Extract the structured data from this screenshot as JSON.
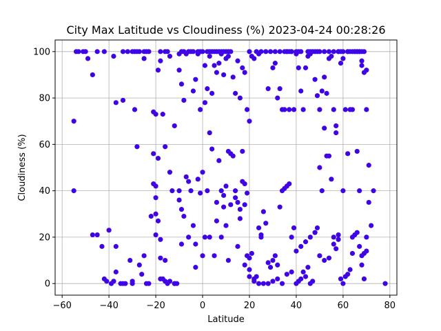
{
  "chart_data": {
    "type": "scatter",
    "title": "City Max Latitude vs Cloudiness (%) 2023-04-24 00:28:26",
    "xlabel": "Latitude",
    "ylabel": "Cloudiness (%)",
    "xlim": [
      -63,
      83
    ],
    "ylim": [
      -5,
      105
    ],
    "xticks": [
      -60,
      -40,
      -20,
      0,
      20,
      40,
      60,
      80
    ],
    "yticks": [
      0,
      20,
      40,
      60,
      80,
      100
    ],
    "grid": true,
    "marker_color": "#4b00d9",
    "marker_edge_color": "#2a10ff",
    "points": [
      [
        -54,
        100
      ],
      [
        -53,
        100
      ],
      [
        -51,
        100
      ],
      [
        -50,
        100
      ],
      [
        -49,
        97
      ],
      [
        -45,
        100
      ],
      [
        -38,
        98
      ],
      [
        -34,
        100
      ],
      [
        -32,
        100
      ],
      [
        -30,
        100
      ],
      [
        -29,
        100
      ],
      [
        -28,
        100
      ],
      [
        -27,
        100
      ],
      [
        -25,
        100
      ],
      [
        -24,
        100
      ],
      [
        -23,
        100
      ],
      [
        -18,
        100
      ],
      [
        -16,
        100
      ],
      [
        -15,
        100
      ],
      [
        -9,
        100
      ],
      [
        -8,
        100
      ],
      [
        -6,
        100
      ],
      [
        -4,
        100
      ],
      [
        -2,
        100
      ],
      [
        -1,
        100
      ],
      [
        0,
        100
      ],
      [
        2,
        100
      ],
      [
        3,
        100
      ],
      [
        4,
        100
      ],
      [
        5,
        100
      ],
      [
        6,
        100
      ],
      [
        7,
        100
      ],
      [
        8,
        100
      ],
      [
        9,
        100
      ],
      [
        10,
        100
      ],
      [
        11,
        100
      ],
      [
        12,
        100
      ],
      [
        20,
        100
      ],
      [
        23,
        100
      ],
      [
        25,
        100
      ],
      [
        27,
        100
      ],
      [
        29,
        100
      ],
      [
        31,
        100
      ],
      [
        33,
        100
      ],
      [
        35,
        100
      ],
      [
        36,
        100
      ],
      [
        37,
        100
      ],
      [
        38,
        100
      ],
      [
        40,
        100
      ],
      [
        41,
        100
      ],
      [
        42,
        100
      ],
      [
        45,
        100
      ],
      [
        46,
        100
      ],
      [
        48,
        100
      ],
      [
        49,
        100
      ],
      [
        50,
        100
      ],
      [
        52,
        100
      ],
      [
        54,
        100
      ],
      [
        56,
        100
      ],
      [
        58,
        100
      ],
      [
        59,
        100
      ],
      [
        60,
        100
      ],
      [
        62,
        100
      ],
      [
        63,
        100
      ],
      [
        64,
        100
      ],
      [
        65,
        100
      ],
      [
        66,
        100
      ],
      [
        67,
        100
      ],
      [
        68,
        100
      ],
      [
        69,
        100
      ],
      [
        -55,
        70
      ],
      [
        -55,
        40
      ],
      [
        -47,
        90
      ],
      [
        -42,
        100
      ],
      [
        -37,
        78
      ],
      [
        -34,
        79
      ],
      [
        -29,
        75
      ],
      [
        -28,
        59
      ],
      [
        -25,
        97
      ],
      [
        -21,
        74
      ],
      [
        -20,
        73
      ],
      [
        -19,
        92
      ],
      [
        -18,
        96
      ],
      [
        -17,
        73
      ],
      [
        -16,
        59
      ],
      [
        -14,
        98
      ],
      [
        -12,
        68
      ],
      [
        -10,
        99
      ],
      [
        -10,
        92
      ],
      [
        -9,
        86
      ],
      [
        -8,
        79
      ],
      [
        -7,
        99
      ],
      [
        -5,
        100
      ],
      [
        -4,
        83
      ],
      [
        -3,
        88
      ],
      [
        -2,
        99
      ],
      [
        -1,
        75
      ],
      [
        1,
        94
      ],
      [
        1,
        78
      ],
      [
        2,
        84
      ],
      [
        3,
        98
      ],
      [
        4,
        82
      ],
      [
        5,
        94
      ],
      [
        6,
        91
      ],
      [
        7,
        95
      ],
      [
        8,
        99
      ],
      [
        9,
        90
      ],
      [
        10,
        97
      ],
      [
        11,
        98
      ],
      [
        13,
        89
      ],
      [
        14,
        82
      ],
      [
        15,
        96
      ],
      [
        16,
        80
      ],
      [
        17,
        93
      ],
      [
        18,
        91
      ],
      [
        19,
        75
      ],
      [
        20,
        70
      ],
      [
        21,
        98
      ],
      [
        22,
        97
      ],
      [
        24,
        99
      ],
      [
        28,
        84
      ],
      [
        30,
        93
      ],
      [
        31,
        95
      ],
      [
        32,
        80
      ],
      [
        33,
        84
      ],
      [
        34,
        75
      ],
      [
        35,
        75
      ],
      [
        36,
        100
      ],
      [
        37,
        75
      ],
      [
        38,
        100
      ],
      [
        39,
        75
      ],
      [
        40,
        99
      ],
      [
        41,
        93
      ],
      [
        42,
        83
      ],
      [
        43,
        75
      ],
      [
        44,
        93
      ],
      [
        45,
        98
      ],
      [
        46,
        99
      ],
      [
        47,
        100
      ],
      [
        48,
        88
      ],
      [
        49,
        81
      ],
      [
        50,
        75
      ],
      [
        51,
        83
      ],
      [
        52,
        89
      ],
      [
        53,
        82
      ],
      [
        54,
        97
      ],
      [
        55,
        98
      ],
      [
        56,
        75
      ],
      [
        57,
        68
      ],
      [
        57,
        65
      ],
      [
        58,
        100
      ],
      [
        59,
        95
      ],
      [
        60,
        97
      ],
      [
        61,
        75
      ],
      [
        62,
        100
      ],
      [
        63,
        75
      ],
      [
        64,
        75
      ],
      [
        65,
        100
      ],
      [
        66,
        100
      ],
      [
        67,
        100
      ],
      [
        68,
        96
      ],
      [
        68,
        94
      ],
      [
        69,
        91
      ],
      [
        70,
        92
      ],
      [
        70,
        75
      ],
      [
        -47,
        21
      ],
      [
        -45,
        21
      ],
      [
        -43,
        16
      ],
      [
        -42,
        2
      ],
      [
        -41,
        1
      ],
      [
        -40,
        23
      ],
      [
        -39,
        0
      ],
      [
        -38,
        1
      ],
      [
        -37,
        5
      ],
      [
        -37,
        16
      ],
      [
        -35,
        0
      ],
      [
        -34,
        0
      ],
      [
        -33,
        0
      ],
      [
        -31,
        10
      ],
      [
        -30,
        1
      ],
      [
        -30,
        0
      ],
      [
        -27,
        8
      ],
      [
        -26,
        4
      ],
      [
        -25,
        12
      ],
      [
        -24,
        0
      ],
      [
        -23,
        0
      ],
      [
        -22,
        29
      ],
      [
        -21,
        56
      ],
      [
        -21,
        43
      ],
      [
        -20,
        42
      ],
      [
        -20,
        37
      ],
      [
        -20,
        30
      ],
      [
        -20,
        21
      ],
      [
        -19,
        54
      ],
      [
        -19,
        27
      ],
      [
        -18,
        19
      ],
      [
        -18,
        11
      ],
      [
        -17,
        2
      ],
      [
        -16,
        1
      ],
      [
        -15,
        0
      ],
      [
        -14,
        48
      ],
      [
        -13,
        40
      ],
      [
        -12,
        0
      ],
      [
        -11,
        0
      ],
      [
        -10,
        40
      ],
      [
        -10,
        36
      ],
      [
        -9,
        32
      ],
      [
        -8,
        29
      ],
      [
        -7,
        46
      ],
      [
        -6,
        44
      ],
      [
        -5,
        40
      ],
      [
        -4,
        25
      ],
      [
        -3,
        17
      ],
      [
        -2,
        45
      ],
      [
        -1,
        39
      ],
      [
        0,
        48
      ],
      [
        1,
        20
      ],
      [
        2,
        40
      ],
      [
        3,
        65
      ],
      [
        4,
        58
      ],
      [
        5,
        12
      ],
      [
        6,
        27
      ],
      [
        7,
        53
      ],
      [
        8,
        40
      ],
      [
        8,
        20
      ],
      [
        9,
        38
      ],
      [
        10,
        42
      ],
      [
        10,
        25
      ],
      [
        11,
        10
      ],
      [
        11,
        57
      ],
      [
        12,
        56
      ],
      [
        13,
        55
      ],
      [
        14,
        40
      ],
      [
        14,
        37
      ],
      [
        15,
        35
      ],
      [
        16,
        32
      ],
      [
        16,
        28
      ],
      [
        17,
        44
      ],
      [
        17,
        57
      ],
      [
        18,
        43
      ],
      [
        18,
        34
      ],
      [
        19,
        12
      ],
      [
        19,
        39
      ],
      [
        20,
        11
      ],
      [
        20,
        6
      ],
      [
        21,
        13
      ],
      [
        22,
        2
      ],
      [
        23,
        3
      ],
      [
        24,
        24
      ],
      [
        25,
        20
      ],
      [
        25,
        21
      ],
      [
        26,
        31
      ],
      [
        27,
        26
      ],
      [
        28,
        9
      ],
      [
        29,
        7
      ],
      [
        30,
        10
      ],
      [
        31,
        12
      ],
      [
        32,
        8
      ],
      [
        33,
        33
      ],
      [
        34,
        40
      ],
      [
        35,
        41
      ],
      [
        36,
        42
      ],
      [
        37,
        43
      ],
      [
        38,
        20
      ],
      [
        39,
        24
      ],
      [
        40,
        0
      ],
      [
        41,
        1
      ],
      [
        42,
        2
      ],
      [
        43,
        5
      ],
      [
        44,
        3
      ],
      [
        45,
        7
      ],
      [
        46,
        0
      ],
      [
        47,
        1
      ],
      [
        48,
        22
      ],
      [
        49,
        24
      ],
      [
        50,
        50
      ],
      [
        51,
        40
      ],
      [
        52,
        67
      ],
      [
        53,
        55
      ],
      [
        54,
        55
      ],
      [
        55,
        45
      ],
      [
        56,
        17
      ],
      [
        57,
        15
      ],
      [
        58,
        19
      ],
      [
        59,
        2
      ],
      [
        60,
        0
      ],
      [
        61,
        3
      ],
      [
        62,
        4
      ],
      [
        63,
        6
      ],
      [
        64,
        20
      ],
      [
        65,
        21
      ],
      [
        66,
        22
      ],
      [
        67,
        16
      ],
      [
        68,
        12
      ],
      [
        69,
        13
      ],
      [
        70,
        14
      ],
      [
        71,
        35
      ],
      [
        72,
        25
      ],
      [
        73,
        40
      ],
      [
        78,
        0
      ],
      [
        -18,
        2
      ],
      [
        -16,
        10
      ],
      [
        -14,
        1
      ],
      [
        -12,
        0
      ],
      [
        -9,
        17
      ],
      [
        -6,
        20
      ],
      [
        -3,
        7
      ],
      [
        0,
        12
      ],
      [
        3,
        20
      ],
      [
        6,
        35
      ],
      [
        9,
        33
      ],
      [
        12,
        34
      ],
      [
        15,
        16
      ],
      [
        18,
        8
      ],
      [
        20,
        3
      ],
      [
        22,
        1
      ],
      [
        24,
        0
      ],
      [
        26,
        0
      ],
      [
        28,
        0
      ],
      [
        30,
        1
      ],
      [
        32,
        2
      ],
      [
        34,
        0
      ],
      [
        36,
        4
      ],
      [
        38,
        5
      ],
      [
        40,
        14
      ],
      [
        42,
        16
      ],
      [
        44,
        18
      ],
      [
        46,
        20
      ],
      [
        48,
        22
      ],
      [
        50,
        12
      ],
      [
        52,
        10
      ],
      [
        54,
        11
      ],
      [
        56,
        20
      ],
      [
        58,
        21
      ],
      [
        60,
        40
      ],
      [
        62,
        56
      ],
      [
        64,
        13
      ],
      [
        66,
        57
      ],
      [
        67,
        40
      ],
      [
        68,
        8
      ],
      [
        69,
        2
      ],
      [
        70,
        20
      ],
      [
        71,
        51
      ]
    ]
  }
}
